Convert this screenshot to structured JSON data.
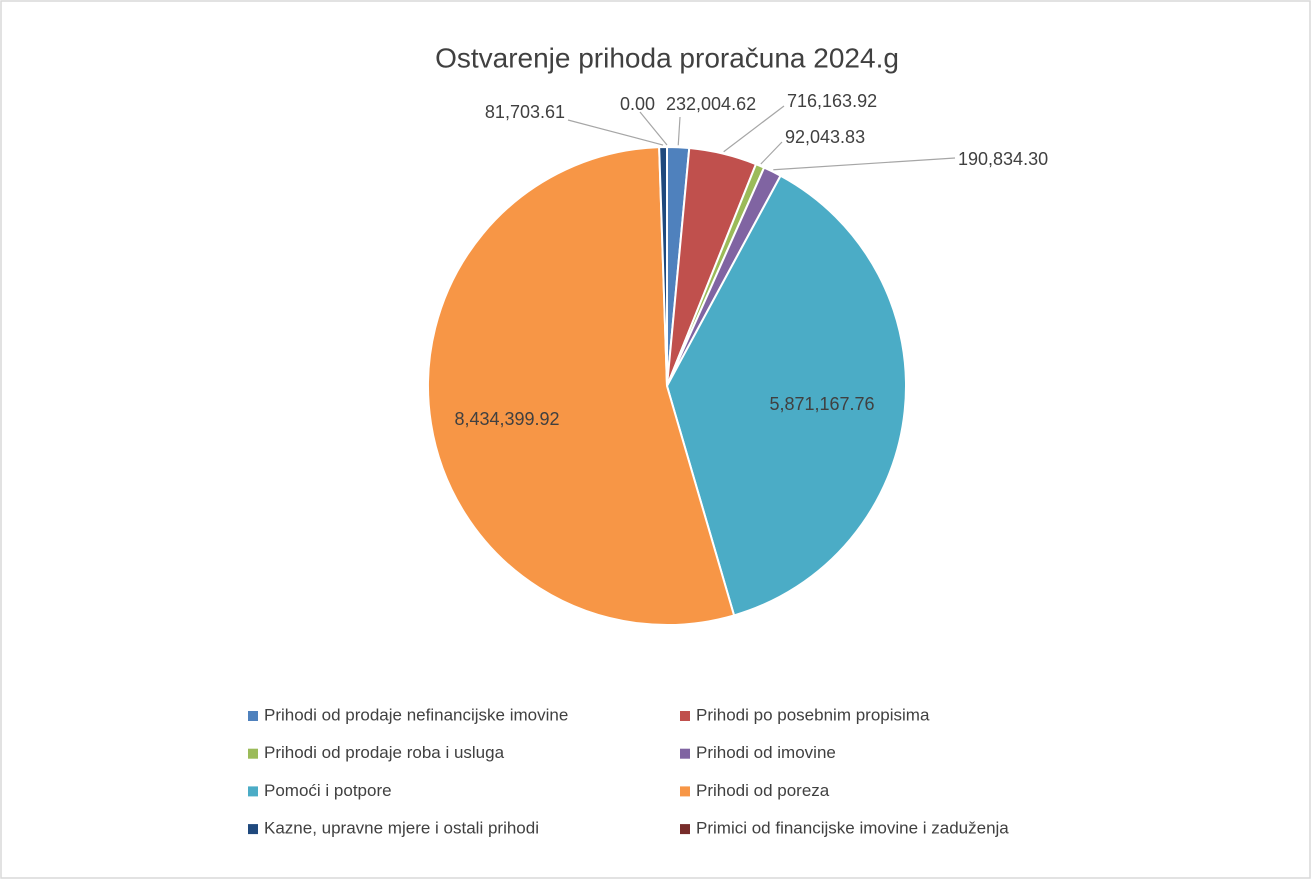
{
  "chart_data": {
    "type": "pie",
    "title": "Ostvarenje prihoda proračuna 2024.g",
    "categories": [
      "Prihodi od prodaje nefinancijske imovine",
      "Prihodi po posebnim propisima",
      "Prihodi od prodaje roba i usluga",
      "Prihodi od imovine",
      "Pomoći i potpore",
      "Prihodi od poreza",
      "Kazne, upravne mjere i ostali prihodi",
      "Primici od financijske imovine i zaduženja"
    ],
    "values": [
      232004.62,
      716163.92,
      92043.83,
      190834.3,
      5871167.76,
      8434399.92,
      81703.61,
      0
    ],
    "value_labels": [
      "232,004.62",
      "716,163.92",
      "92,043.83",
      "190,834.30",
      "5,871,167.76",
      "8,434,399.92",
      "81,703.61",
      "0.00"
    ],
    "colors": [
      "#4f81bd",
      "#c0504d",
      "#9bbb59",
      "#8064a2",
      "#4bacc6",
      "#f79646",
      "#1f497d",
      "#772c2a"
    ],
    "legend": "bottom"
  }
}
